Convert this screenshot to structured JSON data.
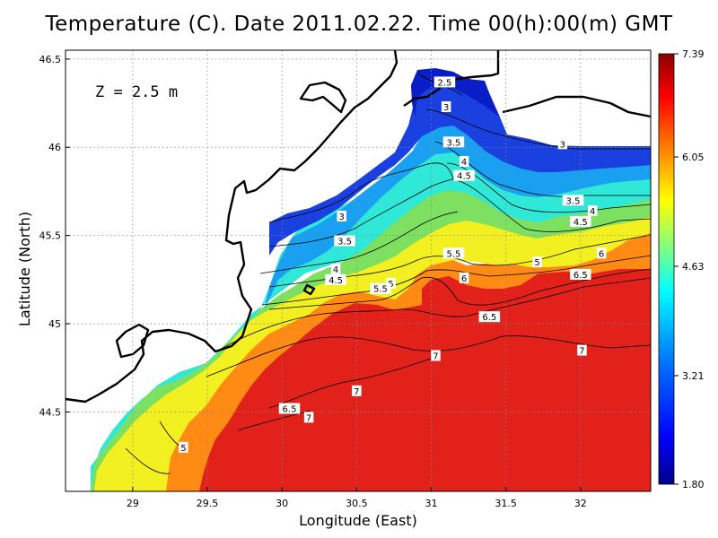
{
  "chart_data": {
    "type": "heatmap",
    "title": "Temperature (C). Date 2011.02.22. Time 00(h):00(m) GMT",
    "xlabel": "Longitude (East)",
    "ylabel": "Latitude (North)",
    "annotation": "Z = 2.5 m",
    "xlim": [
      28.55,
      32.47
    ],
    "ylim": [
      44.05,
      46.55
    ],
    "x_ticks": [
      29,
      29.5,
      30,
      30.5,
      31,
      31.5,
      32
    ],
    "x_tick_labels": [
      "29",
      "29.5",
      "30",
      "30.5",
      "31",
      "31.5",
      "32"
    ],
    "y_ticks": [
      44.5,
      45,
      45.5,
      46,
      46.5
    ],
    "y_tick_labels": [
      "44.5",
      "45",
      "45.5",
      "46",
      "46.5"
    ],
    "grid": true,
    "colorbar": {
      "min": 1.8,
      "max": 7.39,
      "tick_values": [
        7.39,
        6.05,
        4.63,
        3.21,
        1.8
      ],
      "tick_labels": [
        "7.39",
        "6.05",
        "4.63",
        "3.21",
        "1.80"
      ],
      "colors": [
        "#00008b",
        "#0000ff",
        "#0080ff",
        "#00ffff",
        "#80ff80",
        "#ffff00",
        "#ff8000",
        "#ff0000",
        "#8b0000"
      ]
    },
    "contour_levels": [
      2.5,
      3,
      3.5,
      4,
      4.5,
      5,
      5.5,
      6,
      6.5,
      7
    ],
    "contour_labels": [
      {
        "text": "2.5",
        "lon": 31.09,
        "lat": 46.37
      },
      {
        "text": "3",
        "lon": 31.1,
        "lat": 46.23
      },
      {
        "text": "3.5",
        "lon": 31.15,
        "lat": 46.03
      },
      {
        "text": "4",
        "lon": 31.22,
        "lat": 45.92
      },
      {
        "text": "4.5",
        "lon": 31.22,
        "lat": 45.84
      },
      {
        "text": "3",
        "lon": 31.88,
        "lat": 46.02
      },
      {
        "text": "3.5",
        "lon": 31.95,
        "lat": 45.7
      },
      {
        "text": "4",
        "lon": 32.08,
        "lat": 45.64
      },
      {
        "text": "4.5",
        "lon": 32.0,
        "lat": 45.58
      },
      {
        "text": "3",
        "lon": 30.4,
        "lat": 45.61
      },
      {
        "text": "3.5",
        "lon": 30.42,
        "lat": 45.47
      },
      {
        "text": "4",
        "lon": 30.36,
        "lat": 45.31
      },
      {
        "text": "4.5",
        "lon": 30.36,
        "lat": 45.25
      },
      {
        "text": "5.5",
        "lon": 31.15,
        "lat": 45.4
      },
      {
        "text": "5",
        "lon": 31.71,
        "lat": 45.35
      },
      {
        "text": "6",
        "lon": 32.14,
        "lat": 45.4
      },
      {
        "text": "6.5",
        "lon": 32.0,
        "lat": 45.28
      },
      {
        "text": "6",
        "lon": 31.22,
        "lat": 45.26
      },
      {
        "text": "5",
        "lon": 30.73,
        "lat": 45.23
      },
      {
        "text": "5.5",
        "lon": 30.66,
        "lat": 45.2
      },
      {
        "text": "6.5",
        "lon": 31.39,
        "lat": 45.04
      },
      {
        "text": "7",
        "lon": 31.03,
        "lat": 44.82
      },
      {
        "text": "7",
        "lon": 32.01,
        "lat": 44.85
      },
      {
        "text": "7",
        "lon": 30.5,
        "lat": 44.62
      },
      {
        "text": "6.5",
        "lon": 30.05,
        "lat": 44.52
      },
      {
        "text": "7",
        "lon": 30.18,
        "lat": 44.47
      },
      {
        "text": "5",
        "lon": 29.34,
        "lat": 44.3
      }
    ]
  }
}
